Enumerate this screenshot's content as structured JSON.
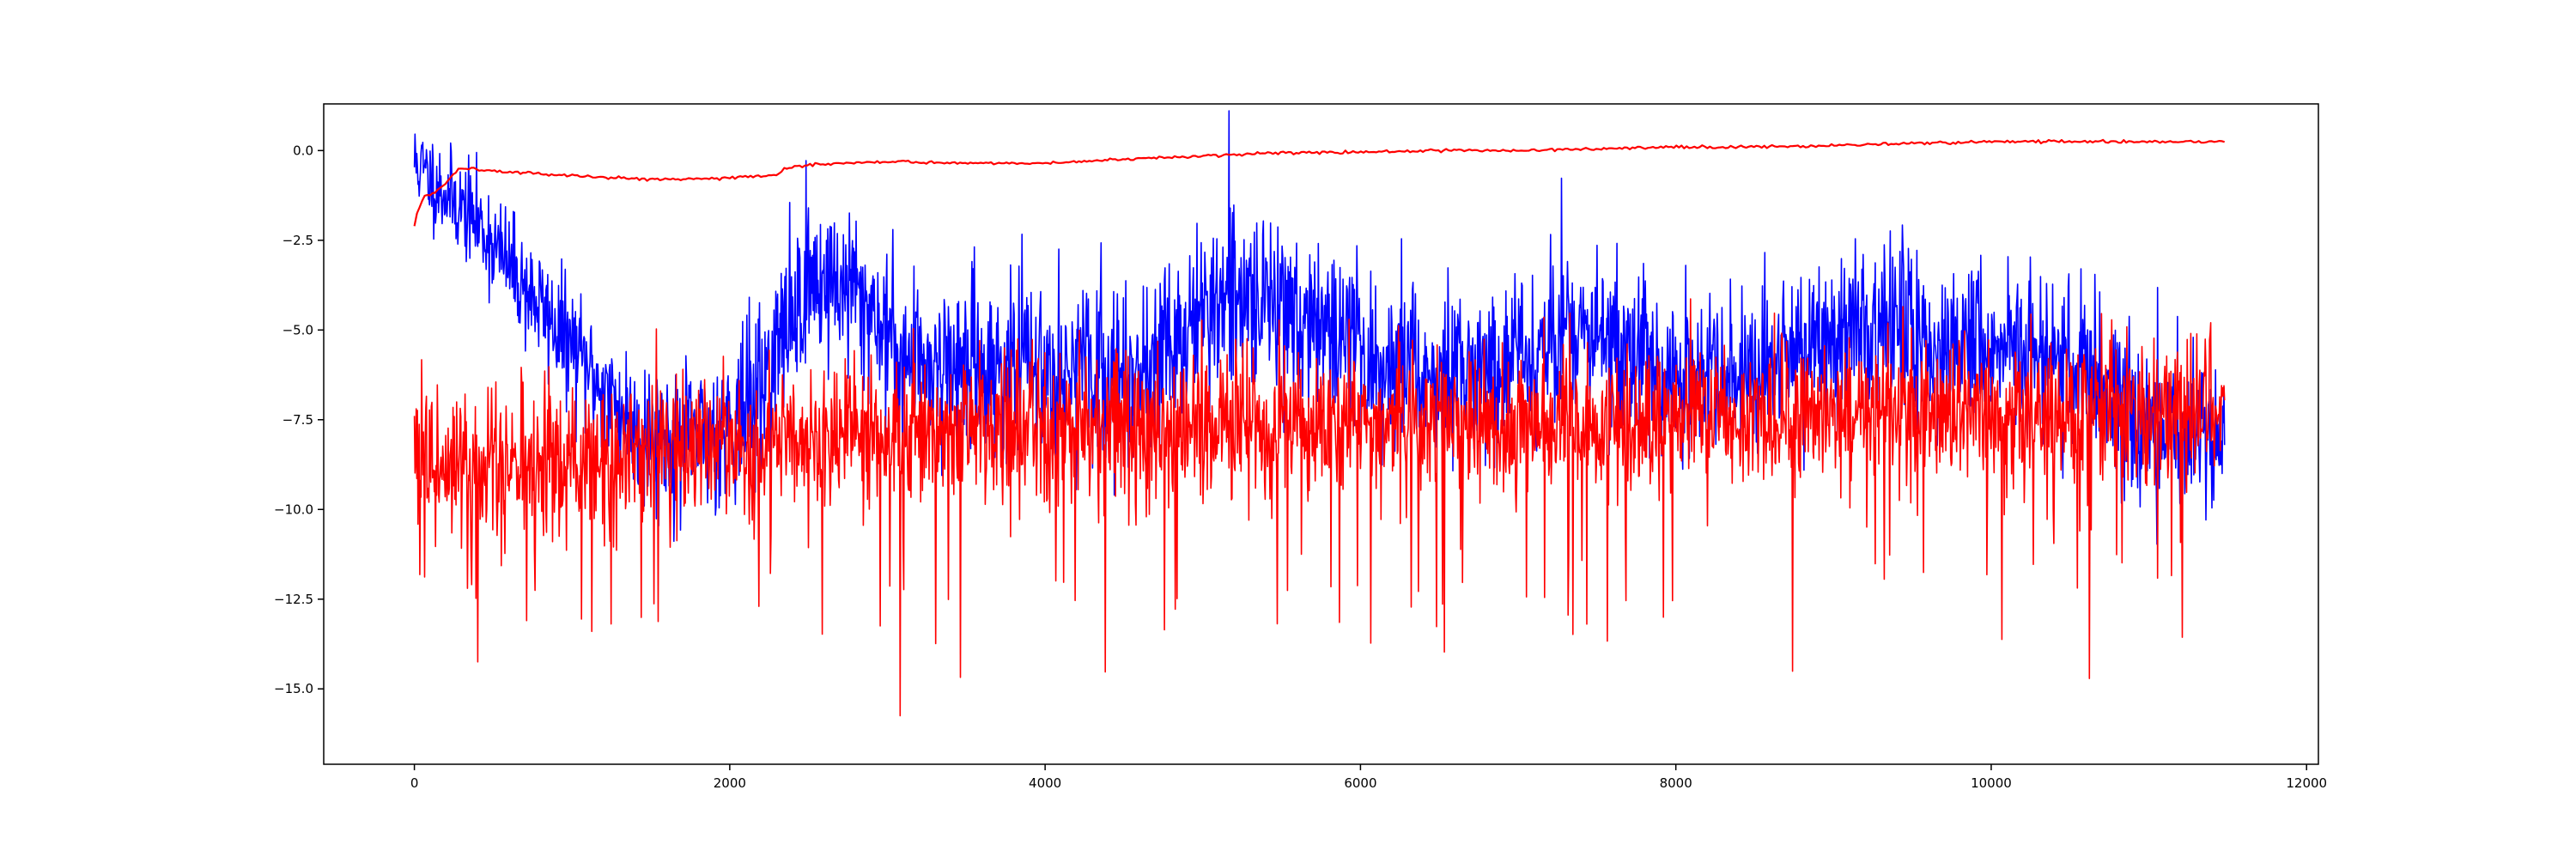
{
  "chart_data": {
    "type": "line",
    "title": "",
    "xlabel": "",
    "ylabel": "",
    "xlim": [
      -575,
      12075
    ],
    "ylim": [
      -17.1,
      1.3
    ],
    "x_ticks": [
      0,
      2000,
      4000,
      6000,
      8000,
      10000,
      12000
    ],
    "x_tick_labels": [
      "0",
      "2000",
      "4000",
      "6000",
      "8000",
      "10000",
      "12000"
    ],
    "y_ticks": [
      0.0,
      -2.5,
      -5.0,
      -7.5,
      -10.0,
      -12.5,
      -15.0
    ],
    "y_tick_labels": [
      "0.0",
      "−2.5",
      "−5.0",
      "−7.5",
      "−10.0",
      "−12.5",
      "−15.0"
    ],
    "grid": false,
    "legend": "none",
    "series": [
      {
        "color": "#0000ff",
        "style": "noisy",
        "x_range": [
          0,
          11480
        ],
        "trend": [
          [
            0,
            -0.3
          ],
          [
            150,
            -1.0
          ],
          [
            400,
            -2.0
          ],
          [
            700,
            -3.8
          ],
          [
            1000,
            -5.5
          ],
          [
            1250,
            -7.0
          ],
          [
            1450,
            -7.8
          ],
          [
            1700,
            -8.2
          ],
          [
            2000,
            -7.6
          ],
          [
            2200,
            -6.6
          ],
          [
            2350,
            -5.0
          ],
          [
            2500,
            -3.6
          ],
          [
            2700,
            -3.7
          ],
          [
            2900,
            -4.4
          ],
          [
            3100,
            -5.8
          ],
          [
            3500,
            -6.0
          ],
          [
            4000,
            -6.0
          ],
          [
            4500,
            -6.3
          ],
          [
            4800,
            -5.5
          ],
          [
            5000,
            -4.5
          ],
          [
            5400,
            -4.0
          ],
          [
            5700,
            -4.8
          ],
          [
            6000,
            -5.7
          ],
          [
            6500,
            -6.2
          ],
          [
            7000,
            -5.8
          ],
          [
            7300,
            -5.0
          ],
          [
            7700,
            -5.6
          ],
          [
            8000,
            -6.3
          ],
          [
            8500,
            -6.5
          ],
          [
            8800,
            -5.3
          ],
          [
            9200,
            -5.0
          ],
          [
            9700,
            -5.3
          ],
          [
            10000,
            -5.5
          ],
          [
            10400,
            -5.8
          ],
          [
            10700,
            -6.6
          ],
          [
            11000,
            -7.5
          ],
          [
            11480,
            -8.0
          ]
        ],
        "noise_amplitude": [
          [
            0,
            0.6
          ],
          [
            1500,
            1.0
          ],
          [
            2500,
            1.2
          ],
          [
            11480,
            1.1
          ]
        ],
        "seed": 11
      },
      {
        "color": "#ff0000",
        "style": "noisy",
        "x_range": [
          0,
          11480
        ],
        "trend": [
          [
            0,
            -8.8
          ],
          [
            1000,
            -8.6
          ],
          [
            2000,
            -8.2
          ],
          [
            3000,
            -7.8
          ],
          [
            4000,
            -7.9
          ],
          [
            5000,
            -7.6
          ],
          [
            6000,
            -7.6
          ],
          [
            7000,
            -7.6
          ],
          [
            8000,
            -7.4
          ],
          [
            9000,
            -7.3
          ],
          [
            10000,
            -7.3
          ],
          [
            11480,
            -7.3
          ]
        ],
        "noise_amplitude": [
          [
            0,
            1.0
          ],
          [
            11480,
            1.0
          ]
        ],
        "seed": 29
      },
      {
        "color": "#ff0000",
        "style": "smooth",
        "x_range": [
          0,
          11480
        ],
        "points": [
          [
            0,
            -2.1
          ],
          [
            20,
            -1.7
          ],
          [
            60,
            -1.3
          ],
          [
            120,
            -1.2
          ],
          [
            200,
            -0.9
          ],
          [
            280,
            -0.5
          ],
          [
            350,
            -0.5
          ],
          [
            500,
            -0.55
          ],
          [
            800,
            -0.65
          ],
          [
            1200,
            -0.75
          ],
          [
            1600,
            -0.8
          ],
          [
            2000,
            -0.75
          ],
          [
            2300,
            -0.7
          ],
          [
            2350,
            -0.5
          ],
          [
            2500,
            -0.4
          ],
          [
            2700,
            -0.35
          ],
          [
            3000,
            -0.3
          ],
          [
            3500,
            -0.35
          ],
          [
            4000,
            -0.35
          ],
          [
            4500,
            -0.25
          ],
          [
            5000,
            -0.15
          ],
          [
            5500,
            -0.05
          ],
          [
            6000,
            -0.05
          ],
          [
            6500,
            0.0
          ],
          [
            7000,
            0.0
          ],
          [
            7500,
            0.05
          ],
          [
            8000,
            0.1
          ],
          [
            8500,
            0.1
          ],
          [
            9000,
            0.15
          ],
          [
            9500,
            0.2
          ],
          [
            10000,
            0.25
          ],
          [
            10500,
            0.25
          ],
          [
            11000,
            0.25
          ],
          [
            11480,
            0.25
          ]
        ],
        "noise_amplitude": [
          [
            0,
            0.02
          ],
          [
            11480,
            0.02
          ]
        ],
        "seed": 5
      }
    ]
  }
}
